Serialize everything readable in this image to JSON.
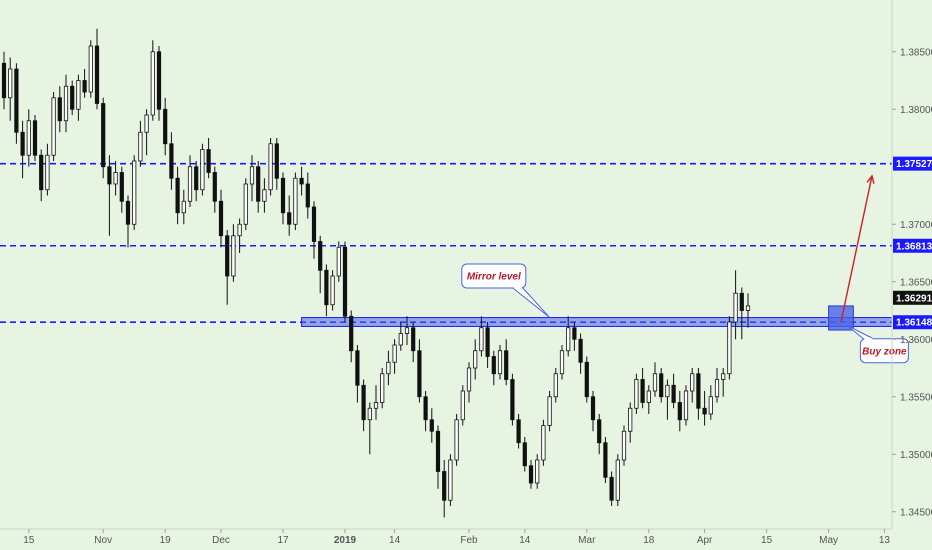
{
  "colors": {
    "background": "#e6f4e1",
    "level_line": "#1a1aff",
    "zone_fill": "#4a63e8",
    "current_price_tag": "#111111",
    "arrow": "#d11f2a",
    "callout_border": "#4a63e8",
    "callout_text": "#c0182a",
    "candle_bull": "#ffffff",
    "candle_bear": "#111111"
  },
  "chart_data": {
    "type": "candlestick",
    "title": "",
    "xlabel": "",
    "ylabel": "",
    "ylim": [
      1.3435,
      1.3895
    ],
    "xlim": [
      0,
      144
    ],
    "grid": false,
    "price_axis": {
      "ticks": [
        {
          "value": 1.385,
          "label": "1.38500"
        },
        {
          "value": 1.38,
          "label": "1.38000"
        },
        {
          "value": 1.37,
          "label": "1.37000"
        },
        {
          "value": 1.365,
          "label": "1.36500"
        },
        {
          "value": 1.36,
          "label": "1.36000"
        },
        {
          "value": 1.355,
          "label": "1.35500"
        },
        {
          "value": 1.35,
          "label": "1.35000"
        },
        {
          "value": 1.345,
          "label": "1.34500"
        }
      ]
    },
    "time_axis": {
      "ticks": [
        {
          "index": 4,
          "label": "15",
          "bold": false
        },
        {
          "index": 16,
          "label": "Nov",
          "bold": false
        },
        {
          "index": 26,
          "label": "19",
          "bold": false
        },
        {
          "index": 35,
          "label": "Dec",
          "bold": false
        },
        {
          "index": 45,
          "label": "17",
          "bold": false
        },
        {
          "index": 55,
          "label": "2019",
          "bold": true
        },
        {
          "index": 63,
          "label": "14",
          "bold": false
        },
        {
          "index": 75,
          "label": "Feb",
          "bold": false
        },
        {
          "index": 84,
          "label": "14",
          "bold": false
        },
        {
          "index": 94,
          "label": "Mar",
          "bold": false
        },
        {
          "index": 104,
          "label": "18",
          "bold": false
        },
        {
          "index": 113,
          "label": "Apr",
          "bold": false
        },
        {
          "index": 123,
          "label": "15",
          "bold": false
        },
        {
          "index": 133,
          "label": "May",
          "bold": false
        },
        {
          "index": 142,
          "label": "13",
          "bold": false
        }
      ]
    },
    "levels": [
      {
        "value": 1.37527,
        "label": "1.37527",
        "style": "dashed"
      },
      {
        "value": 1.36813,
        "label": "1.36813",
        "style": "dashed"
      },
      {
        "value": 1.36148,
        "label": "1.36148",
        "style": "dashed"
      }
    ],
    "current_price": {
      "value": 1.36291,
      "label": "1.36291"
    },
    "mirror_zone": {
      "from_index": 48,
      "y_low": 1.3612,
      "y_high": 1.3618
    },
    "buy_zone": {
      "from_index": 133,
      "to_index": 137,
      "y_low": 1.3608,
      "y_high": 1.3629
    },
    "arrow": {
      "from_index": 135,
      "from_value": 1.3615,
      "to_index": 140,
      "to_value": 1.3742
    },
    "annotations": [
      {
        "id": "mirror",
        "text": "Mirror level",
        "index": 79,
        "value": 1.3655,
        "pointer_index": 88,
        "pointer_value": 1.3619
      },
      {
        "id": "buy",
        "text": "Buy zone",
        "index": 142,
        "value": 1.359,
        "pointer_index": 136,
        "pointer_value": 1.3612
      }
    ],
    "candles": [
      [
        1.384,
        1.385,
        1.38,
        1.381
      ],
      [
        1.381,
        1.3845,
        1.379,
        1.3835
      ],
      [
        1.3835,
        1.384,
        1.377,
        1.378
      ],
      [
        1.378,
        1.379,
        1.374,
        1.376
      ],
      [
        1.376,
        1.38,
        1.375,
        1.379
      ],
      [
        1.379,
        1.3795,
        1.3755,
        1.376
      ],
      [
        1.376,
        1.3765,
        1.372,
        1.373
      ],
      [
        1.373,
        1.377,
        1.3725,
        1.376
      ],
      [
        1.376,
        1.3815,
        1.3755,
        1.381
      ],
      [
        1.381,
        1.382,
        1.378,
        1.379
      ],
      [
        1.379,
        1.383,
        1.378,
        1.382
      ],
      [
        1.382,
        1.3825,
        1.3795,
        1.38
      ],
      [
        1.38,
        1.383,
        1.379,
        1.3825
      ],
      [
        1.3825,
        1.3835,
        1.381,
        1.3815
      ],
      [
        1.3815,
        1.386,
        1.381,
        1.3855
      ],
      [
        1.3855,
        1.387,
        1.38,
        1.3805
      ],
      [
        1.3805,
        1.381,
        1.374,
        1.375
      ],
      [
        1.375,
        1.376,
        1.369,
        1.3735
      ],
      [
        1.3735,
        1.3755,
        1.3725,
        1.3745
      ],
      [
        1.3745,
        1.375,
        1.371,
        1.372
      ],
      [
        1.372,
        1.3725,
        1.368,
        1.37
      ],
      [
        1.37,
        1.376,
        1.3695,
        1.3755
      ],
      [
        1.3755,
        1.379,
        1.375,
        1.378
      ],
      [
        1.378,
        1.38,
        1.376,
        1.3795
      ],
      [
        1.3795,
        1.386,
        1.379,
        1.385
      ],
      [
        1.385,
        1.3855,
        1.379,
        1.38
      ],
      [
        1.38,
        1.381,
        1.376,
        1.377
      ],
      [
        1.377,
        1.378,
        1.373,
        1.374
      ],
      [
        1.374,
        1.375,
        1.37,
        1.371
      ],
      [
        1.371,
        1.373,
        1.37,
        1.372
      ],
      [
        1.372,
        1.376,
        1.3715,
        1.375
      ],
      [
        1.375,
        1.3755,
        1.372,
        1.373
      ],
      [
        1.373,
        1.377,
        1.3725,
        1.3765
      ],
      [
        1.3765,
        1.3775,
        1.374,
        1.3745
      ],
      [
        1.3745,
        1.375,
        1.371,
        1.372
      ],
      [
        1.372,
        1.373,
        1.368,
        1.369
      ],
      [
        1.369,
        1.3695,
        1.363,
        1.3655
      ],
      [
        1.3655,
        1.37,
        1.365,
        1.369
      ],
      [
        1.369,
        1.3705,
        1.3675,
        1.37
      ],
      [
        1.37,
        1.374,
        1.3695,
        1.3735
      ],
      [
        1.3735,
        1.376,
        1.372,
        1.375
      ],
      [
        1.375,
        1.3755,
        1.371,
        1.372
      ],
      [
        1.372,
        1.374,
        1.371,
        1.373
      ],
      [
        1.373,
        1.3775,
        1.3725,
        1.377
      ],
      [
        1.377,
        1.3775,
        1.373,
        1.374
      ],
      [
        1.374,
        1.3745,
        1.37,
        1.371
      ],
      [
        1.371,
        1.3725,
        1.369,
        1.37
      ],
      [
        1.37,
        1.3745,
        1.3695,
        1.374
      ],
      [
        1.374,
        1.375,
        1.3725,
        1.3735
      ],
      [
        1.3735,
        1.3745,
        1.3705,
        1.3715
      ],
      [
        1.3715,
        1.372,
        1.367,
        1.3685
      ],
      [
        1.3685,
        1.369,
        1.364,
        1.366
      ],
      [
        1.366,
        1.3665,
        1.362,
        1.363
      ],
      [
        1.363,
        1.366,
        1.3625,
        1.3655
      ],
      [
        1.3655,
        1.3685,
        1.365,
        1.368
      ],
      [
        1.368,
        1.3685,
        1.3615,
        1.362
      ],
      [
        1.362,
        1.3625,
        1.358,
        1.359
      ],
      [
        1.359,
        1.3595,
        1.3545,
        1.356
      ],
      [
        1.356,
        1.3565,
        1.352,
        1.353
      ],
      [
        1.353,
        1.3545,
        1.35,
        1.354
      ],
      [
        1.354,
        1.356,
        1.353,
        1.3545
      ],
      [
        1.3545,
        1.3575,
        1.354,
        1.357
      ],
      [
        1.357,
        1.359,
        1.356,
        1.358
      ],
      [
        1.358,
        1.36,
        1.357,
        1.3595
      ],
      [
        1.3595,
        1.3615,
        1.359,
        1.3605
      ],
      [
        1.3605,
        1.362,
        1.3595,
        1.361
      ],
      [
        1.361,
        1.3615,
        1.358,
        1.359
      ],
      [
        1.359,
        1.36,
        1.3545,
        1.355
      ],
      [
        1.355,
        1.3555,
        1.352,
        1.353
      ],
      [
        1.353,
        1.354,
        1.351,
        1.352
      ],
      [
        1.352,
        1.3525,
        1.347,
        1.3485
      ],
      [
        1.3485,
        1.3495,
        1.3445,
        1.346
      ],
      [
        1.346,
        1.35,
        1.3455,
        1.3495
      ],
      [
        1.3495,
        1.3535,
        1.349,
        1.353
      ],
      [
        1.353,
        1.356,
        1.3525,
        1.3555
      ],
      [
        1.3555,
        1.358,
        1.3545,
        1.3575
      ],
      [
        1.3575,
        1.36,
        1.3565,
        1.359
      ],
      [
        1.359,
        1.362,
        1.3585,
        1.361
      ],
      [
        1.361,
        1.3615,
        1.3575,
        1.3585
      ],
      [
        1.3585,
        1.359,
        1.356,
        1.357
      ],
      [
        1.357,
        1.3595,
        1.3565,
        1.359
      ],
      [
        1.359,
        1.36,
        1.356,
        1.3565
      ],
      [
        1.3565,
        1.357,
        1.3525,
        1.353
      ],
      [
        1.353,
        1.3535,
        1.3505,
        1.351
      ],
      [
        1.351,
        1.3515,
        1.3485,
        1.349
      ],
      [
        1.349,
        1.3495,
        1.347,
        1.3475
      ],
      [
        1.3475,
        1.35,
        1.347,
        1.3495
      ],
      [
        1.3495,
        1.353,
        1.349,
        1.3525
      ],
      [
        1.3525,
        1.3555,
        1.352,
        1.355
      ],
      [
        1.355,
        1.3575,
        1.3545,
        1.357
      ],
      [
        1.357,
        1.3595,
        1.3565,
        1.359
      ],
      [
        1.359,
        1.362,
        1.3585,
        1.361
      ],
      [
        1.361,
        1.3615,
        1.359,
        1.36
      ],
      [
        1.36,
        1.3605,
        1.357,
        1.358
      ],
      [
        1.358,
        1.3585,
        1.3545,
        1.355
      ],
      [
        1.355,
        1.3555,
        1.352,
        1.353
      ],
      [
        1.353,
        1.3535,
        1.35,
        1.351
      ],
      [
        1.351,
        1.3515,
        1.3475,
        1.348
      ],
      [
        1.348,
        1.3485,
        1.3455,
        1.346
      ],
      [
        1.346,
        1.35,
        1.3455,
        1.3495
      ],
      [
        1.3495,
        1.3525,
        1.349,
        1.352
      ],
      [
        1.352,
        1.3545,
        1.351,
        1.354
      ],
      [
        1.354,
        1.357,
        1.3535,
        1.3565
      ],
      [
        1.3565,
        1.3575,
        1.354,
        1.3545
      ],
      [
        1.3545,
        1.356,
        1.3535,
        1.3555
      ],
      [
        1.3555,
        1.358,
        1.355,
        1.357
      ],
      [
        1.357,
        1.3575,
        1.3545,
        1.355
      ],
      [
        1.355,
        1.3565,
        1.353,
        1.356
      ],
      [
        1.356,
        1.357,
        1.354,
        1.3545
      ],
      [
        1.3545,
        1.3555,
        1.352,
        1.353
      ],
      [
        1.353,
        1.356,
        1.3525,
        1.3555
      ],
      [
        1.3555,
        1.3575,
        1.3545,
        1.357
      ],
      [
        1.357,
        1.3575,
        1.353,
        1.354
      ],
      [
        1.354,
        1.3555,
        1.3525,
        1.3535
      ],
      [
        1.3535,
        1.356,
        1.353,
        1.355
      ],
      [
        1.355,
        1.3575,
        1.3545,
        1.3565
      ],
      [
        1.3565,
        1.3575,
        1.355,
        1.357
      ],
      [
        1.357,
        1.362,
        1.3565,
        1.3615
      ],
      [
        1.3615,
        1.366,
        1.36,
        1.364
      ],
      [
        1.364,
        1.3645,
        1.36,
        1.3625
      ],
      [
        1.3625,
        1.364,
        1.361,
        1.3629
      ]
    ]
  }
}
